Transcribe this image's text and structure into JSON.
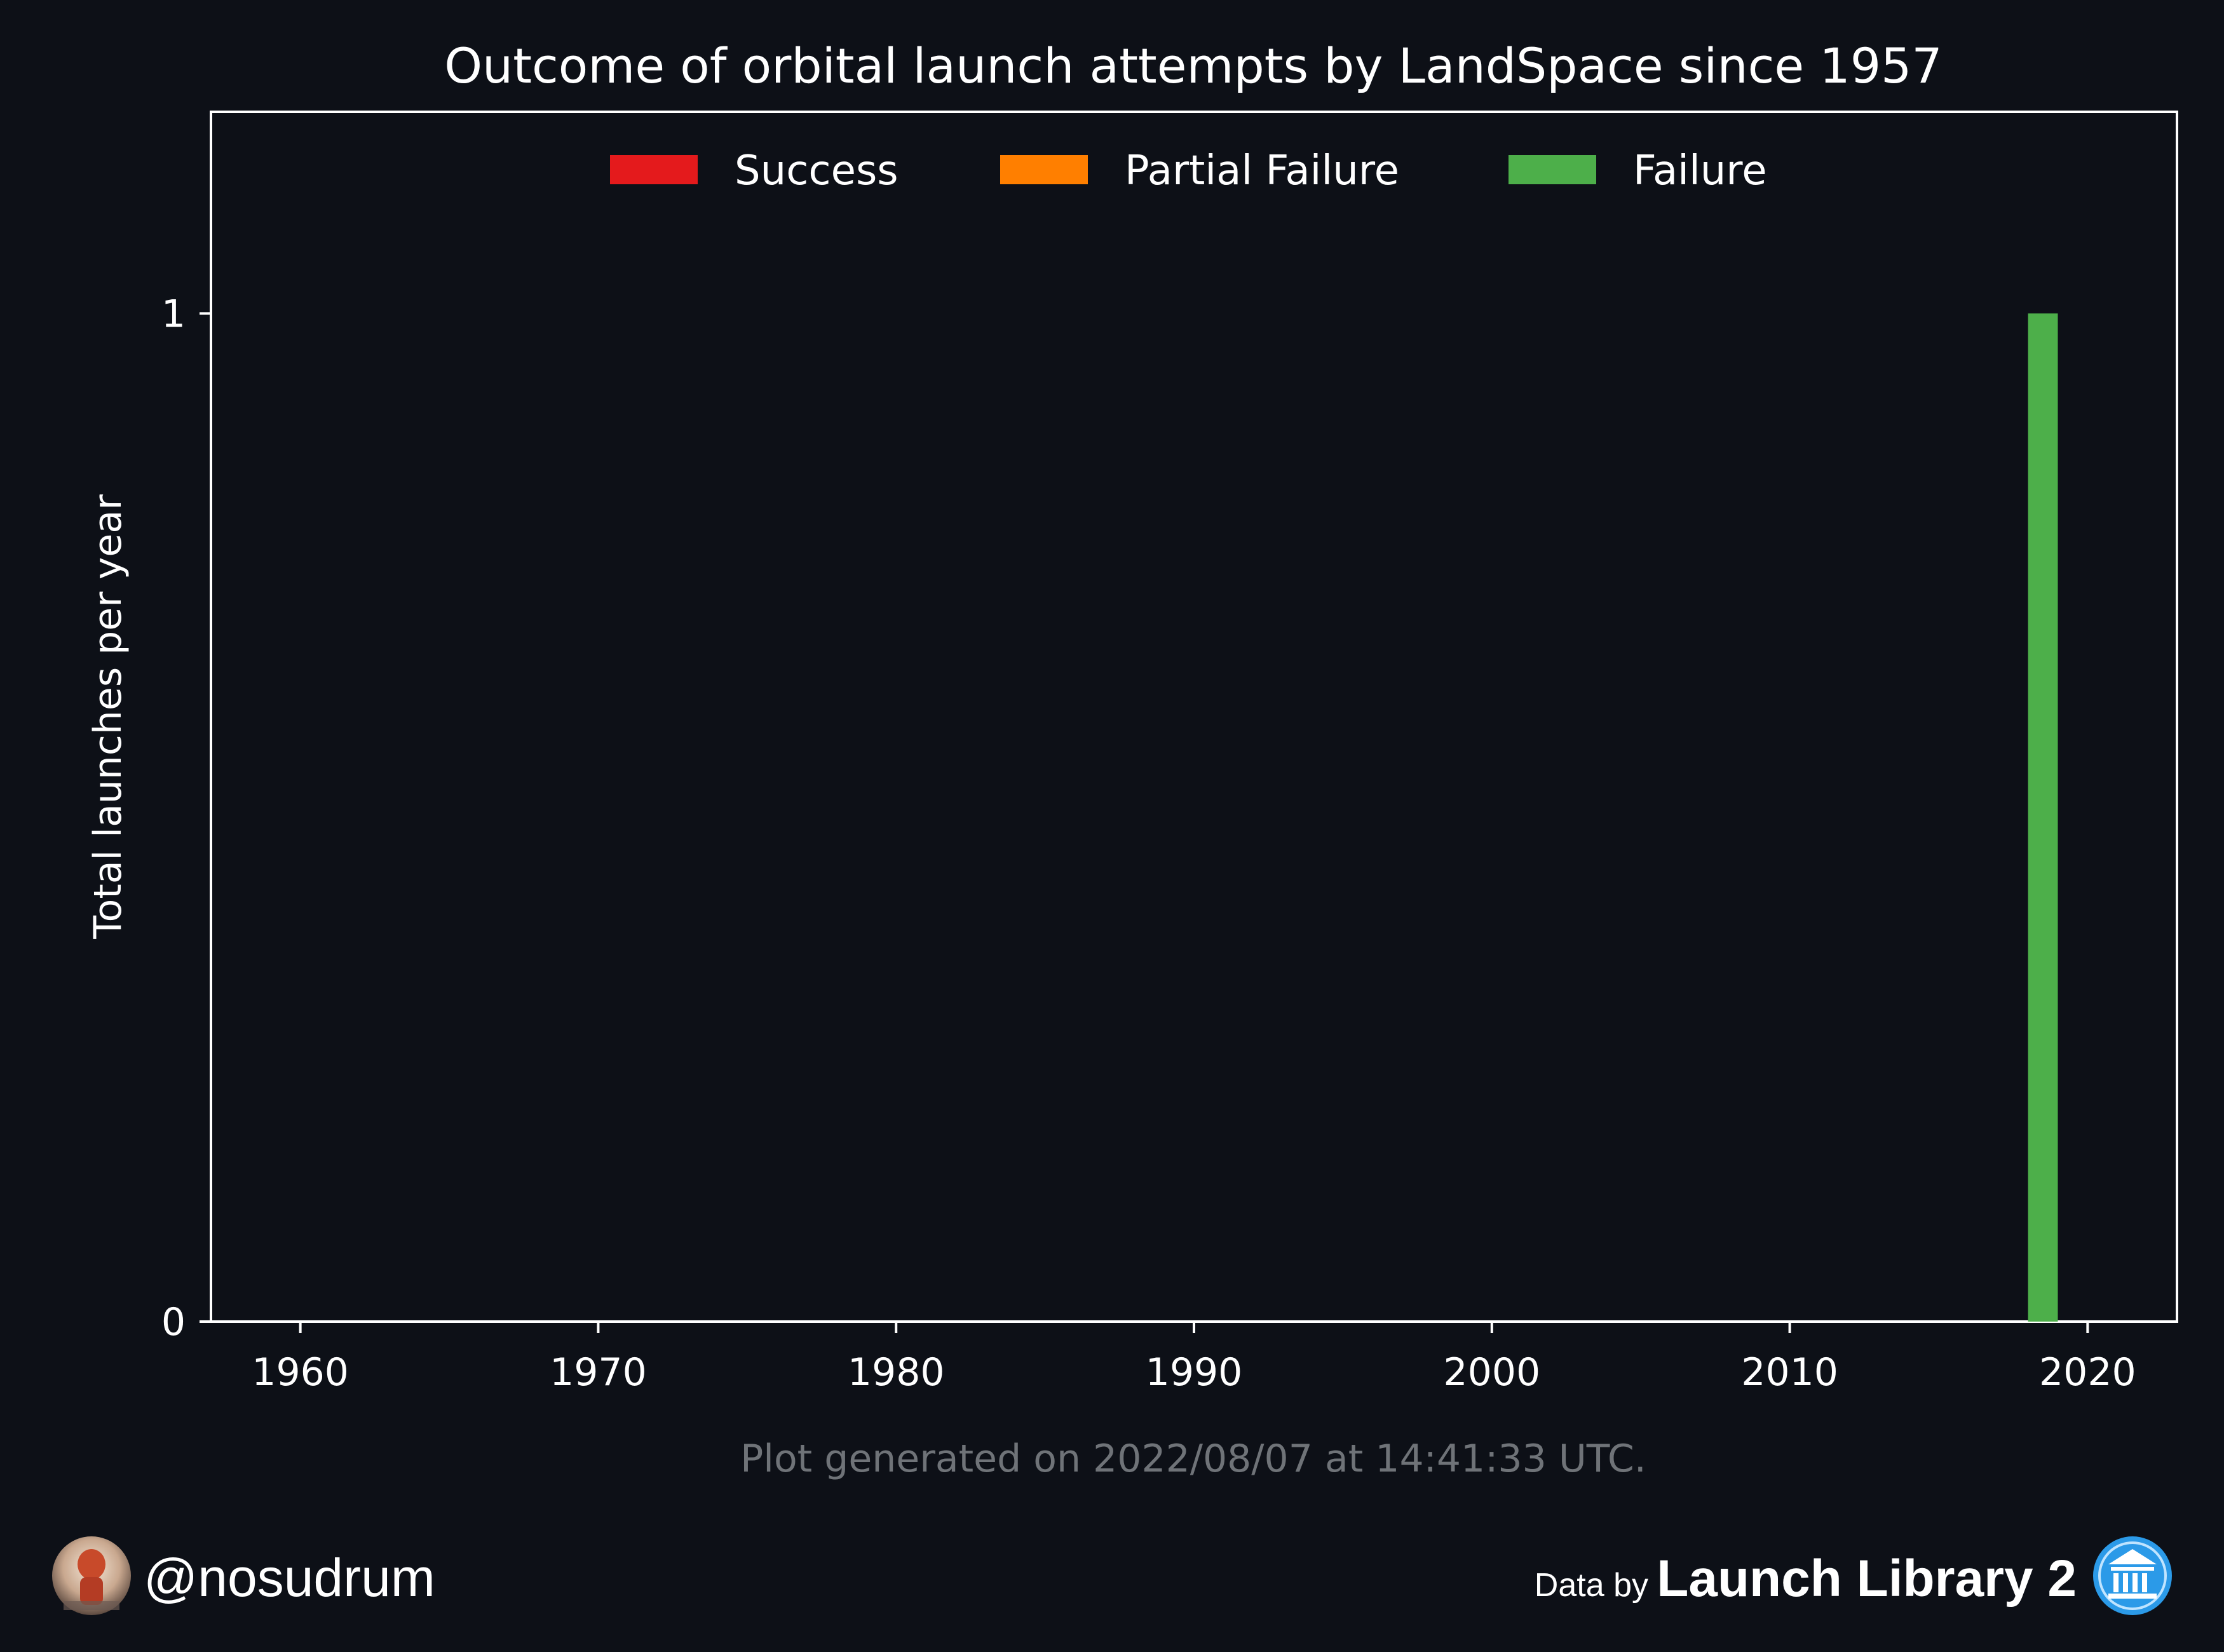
{
  "chart_data": {
    "type": "bar",
    "title": "Outcome of orbital launch attempts by LandSpace since 1957",
    "xlabel": "",
    "ylabel": "Total launches per year",
    "xlim": [
      1957,
      2023
    ],
    "ylim": [
      0,
      1.2
    ],
    "xticks": [
      1960,
      1970,
      1980,
      1990,
      2000,
      2010,
      2020
    ],
    "yticks": [
      0,
      1
    ],
    "stacked": true,
    "grid": false,
    "legend_position": "top-center",
    "x": [
      2018
    ],
    "series": [
      {
        "name": "Success",
        "color": "#e41a1c",
        "values": [
          0
        ]
      },
      {
        "name": "Partial Failure",
        "color": "#ff7f00",
        "values": [
          0
        ]
      },
      {
        "name": "Failure",
        "color": "#4daf4a",
        "values": [
          1
        ]
      }
    ]
  },
  "footer": {
    "generated": "Plot generated on 2022/08/07 at 14:41:33 UTC.",
    "handle": "@nosudrum",
    "data_by": "Data by",
    "source": "Launch Library 2"
  },
  "icons": {
    "avatar": "astronaut-avatar-icon",
    "source_logo": "launch-library-logo-icon"
  },
  "colors": {
    "background": "#0d1017",
    "axes": "#ffffff",
    "muted_text": "#6f7378",
    "logo_blue": "#2b9ae8"
  }
}
